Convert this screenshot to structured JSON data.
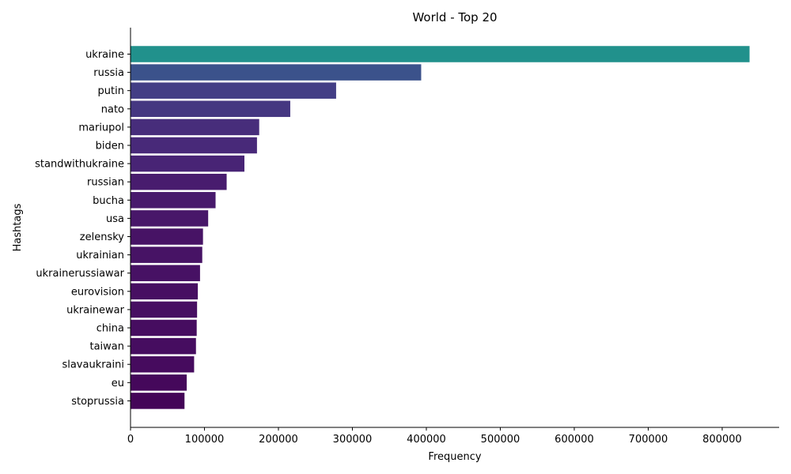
{
  "chart_data": {
    "type": "bar",
    "orientation": "horizontal",
    "title": "World - Top 20",
    "xlabel": "Frequency",
    "ylabel": "Hashtags",
    "categories": [
      "ukraine",
      "russia",
      "putin",
      "nato",
      "mariupol",
      "biden",
      "standwithukraine",
      "russian",
      "bucha",
      "usa",
      "zelensky",
      "ukrainian",
      "ukrainerussiawar",
      "eurovision",
      "ukrainewar",
      "china",
      "taiwan",
      "slavaukraini",
      "eu",
      "stoprussia"
    ],
    "values": [
      837000,
      393000,
      278000,
      216000,
      174000,
      171000,
      154000,
      130000,
      115000,
      105000,
      98000,
      97000,
      94000,
      91000,
      90000,
      89500,
      88500,
      86000,
      76000,
      73000
    ],
    "colors": [
      "#21918c",
      "#3b528b",
      "#433e85",
      "#453781",
      "#472d7b",
      "#482979",
      "#482475",
      "#481c6e",
      "#481a6c",
      "#481769",
      "#471365",
      "#471365",
      "#471164",
      "#470f62",
      "#470f62",
      "#460d60",
      "#460d60",
      "#460b5e",
      "#45085b",
      "#440558"
    ],
    "xlim": [
      0,
      877000
    ],
    "xticks": [
      0,
      100000,
      200000,
      300000,
      400000,
      500000,
      600000,
      700000,
      800000
    ],
    "xtick_labels": [
      "0",
      "100000",
      "200000",
      "300000",
      "400000",
      "500000",
      "600000",
      "700000",
      "800000"
    ],
    "grid": false,
    "legend": "none"
  }
}
